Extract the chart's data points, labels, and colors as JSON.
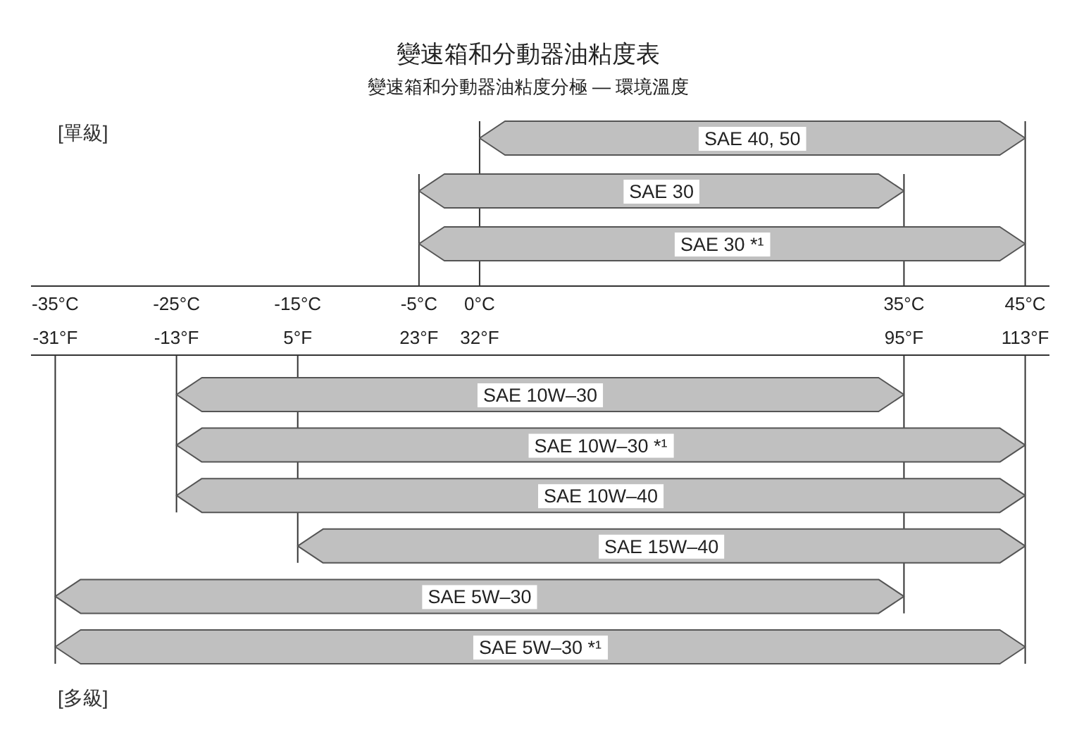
{
  "chart_data": [
    {
      "type": "bar",
      "orientation": "horizontal",
      "title": "變速箱和分動器油粘度表",
      "subtitle": "變速箱和分動器油粘度分極 — 環境溫度",
      "annotations": [
        "[單級]"
      ],
      "categories": [
        "SAE 40, 50",
        "SAE 30",
        "SAE 30 *¹"
      ],
      "base": [
        0,
        -5,
        -5
      ],
      "values": [
        45,
        40,
        50
      ],
      "color": "#c0c0c0",
      "xlim": [
        -37,
        47
      ],
      "xticks": [
        {
          "value": -35,
          "label": "-35°C"
        },
        {
          "value": -25,
          "label": "-25°C"
        },
        {
          "value": -15,
          "label": "-15°C"
        },
        {
          "value": -5,
          "label": "-5°C"
        },
        {
          "value": 0,
          "label": "0°C"
        },
        {
          "value": 35,
          "label": "35°C"
        },
        {
          "value": 45,
          "label": "45°C"
        }
      ],
      "x2lim": [
        -34.6,
        116.6
      ],
      "x2ticks": [
        {
          "value": -31,
          "label": "-31°F"
        },
        {
          "value": -13,
          "label": "-13°F"
        },
        {
          "value": 5,
          "label": "5°F"
        },
        {
          "value": 23,
          "label": "23°F"
        },
        {
          "value": 32,
          "label": "32°F"
        },
        {
          "value": 95,
          "label": "95°F"
        },
        {
          "value": 113,
          "label": "113°F"
        }
      ],
      "ref_lines": [
        {
          "axis": "x",
          "value": -5
        },
        {
          "axis": "x",
          "value": 0
        },
        {
          "axis": "x",
          "value": 35
        },
        {
          "axis": "x",
          "value": 45
        }
      ]
    },
    {
      "type": "bar",
      "orientation": "horizontal",
      "annotations": [
        "[多級]"
      ],
      "categories": [
        "SAE 10W–30",
        "SAE 10W–30 *¹",
        "SAE 10W–40",
        "SAE 15W–40",
        "SAE 5W–30",
        "SAE 5W–30 *¹"
      ],
      "base": [
        -25,
        -25,
        -25,
        -15,
        -35,
        -35
      ],
      "values": [
        60,
        70,
        70,
        60,
        70,
        80
      ],
      "color": "#c0c0c0",
      "xlim": [
        -37,
        47
      ],
      "tick_labels": false,
      "ref_lines": [
        {
          "axis": "x",
          "value": -35
        },
        {
          "axis": "x",
          "value": -25
        },
        {
          "axis": "x",
          "value": -15
        },
        {
          "axis": "x",
          "value": 35
        },
        {
          "axis": "x",
          "value": 45
        }
      ]
    }
  ]
}
